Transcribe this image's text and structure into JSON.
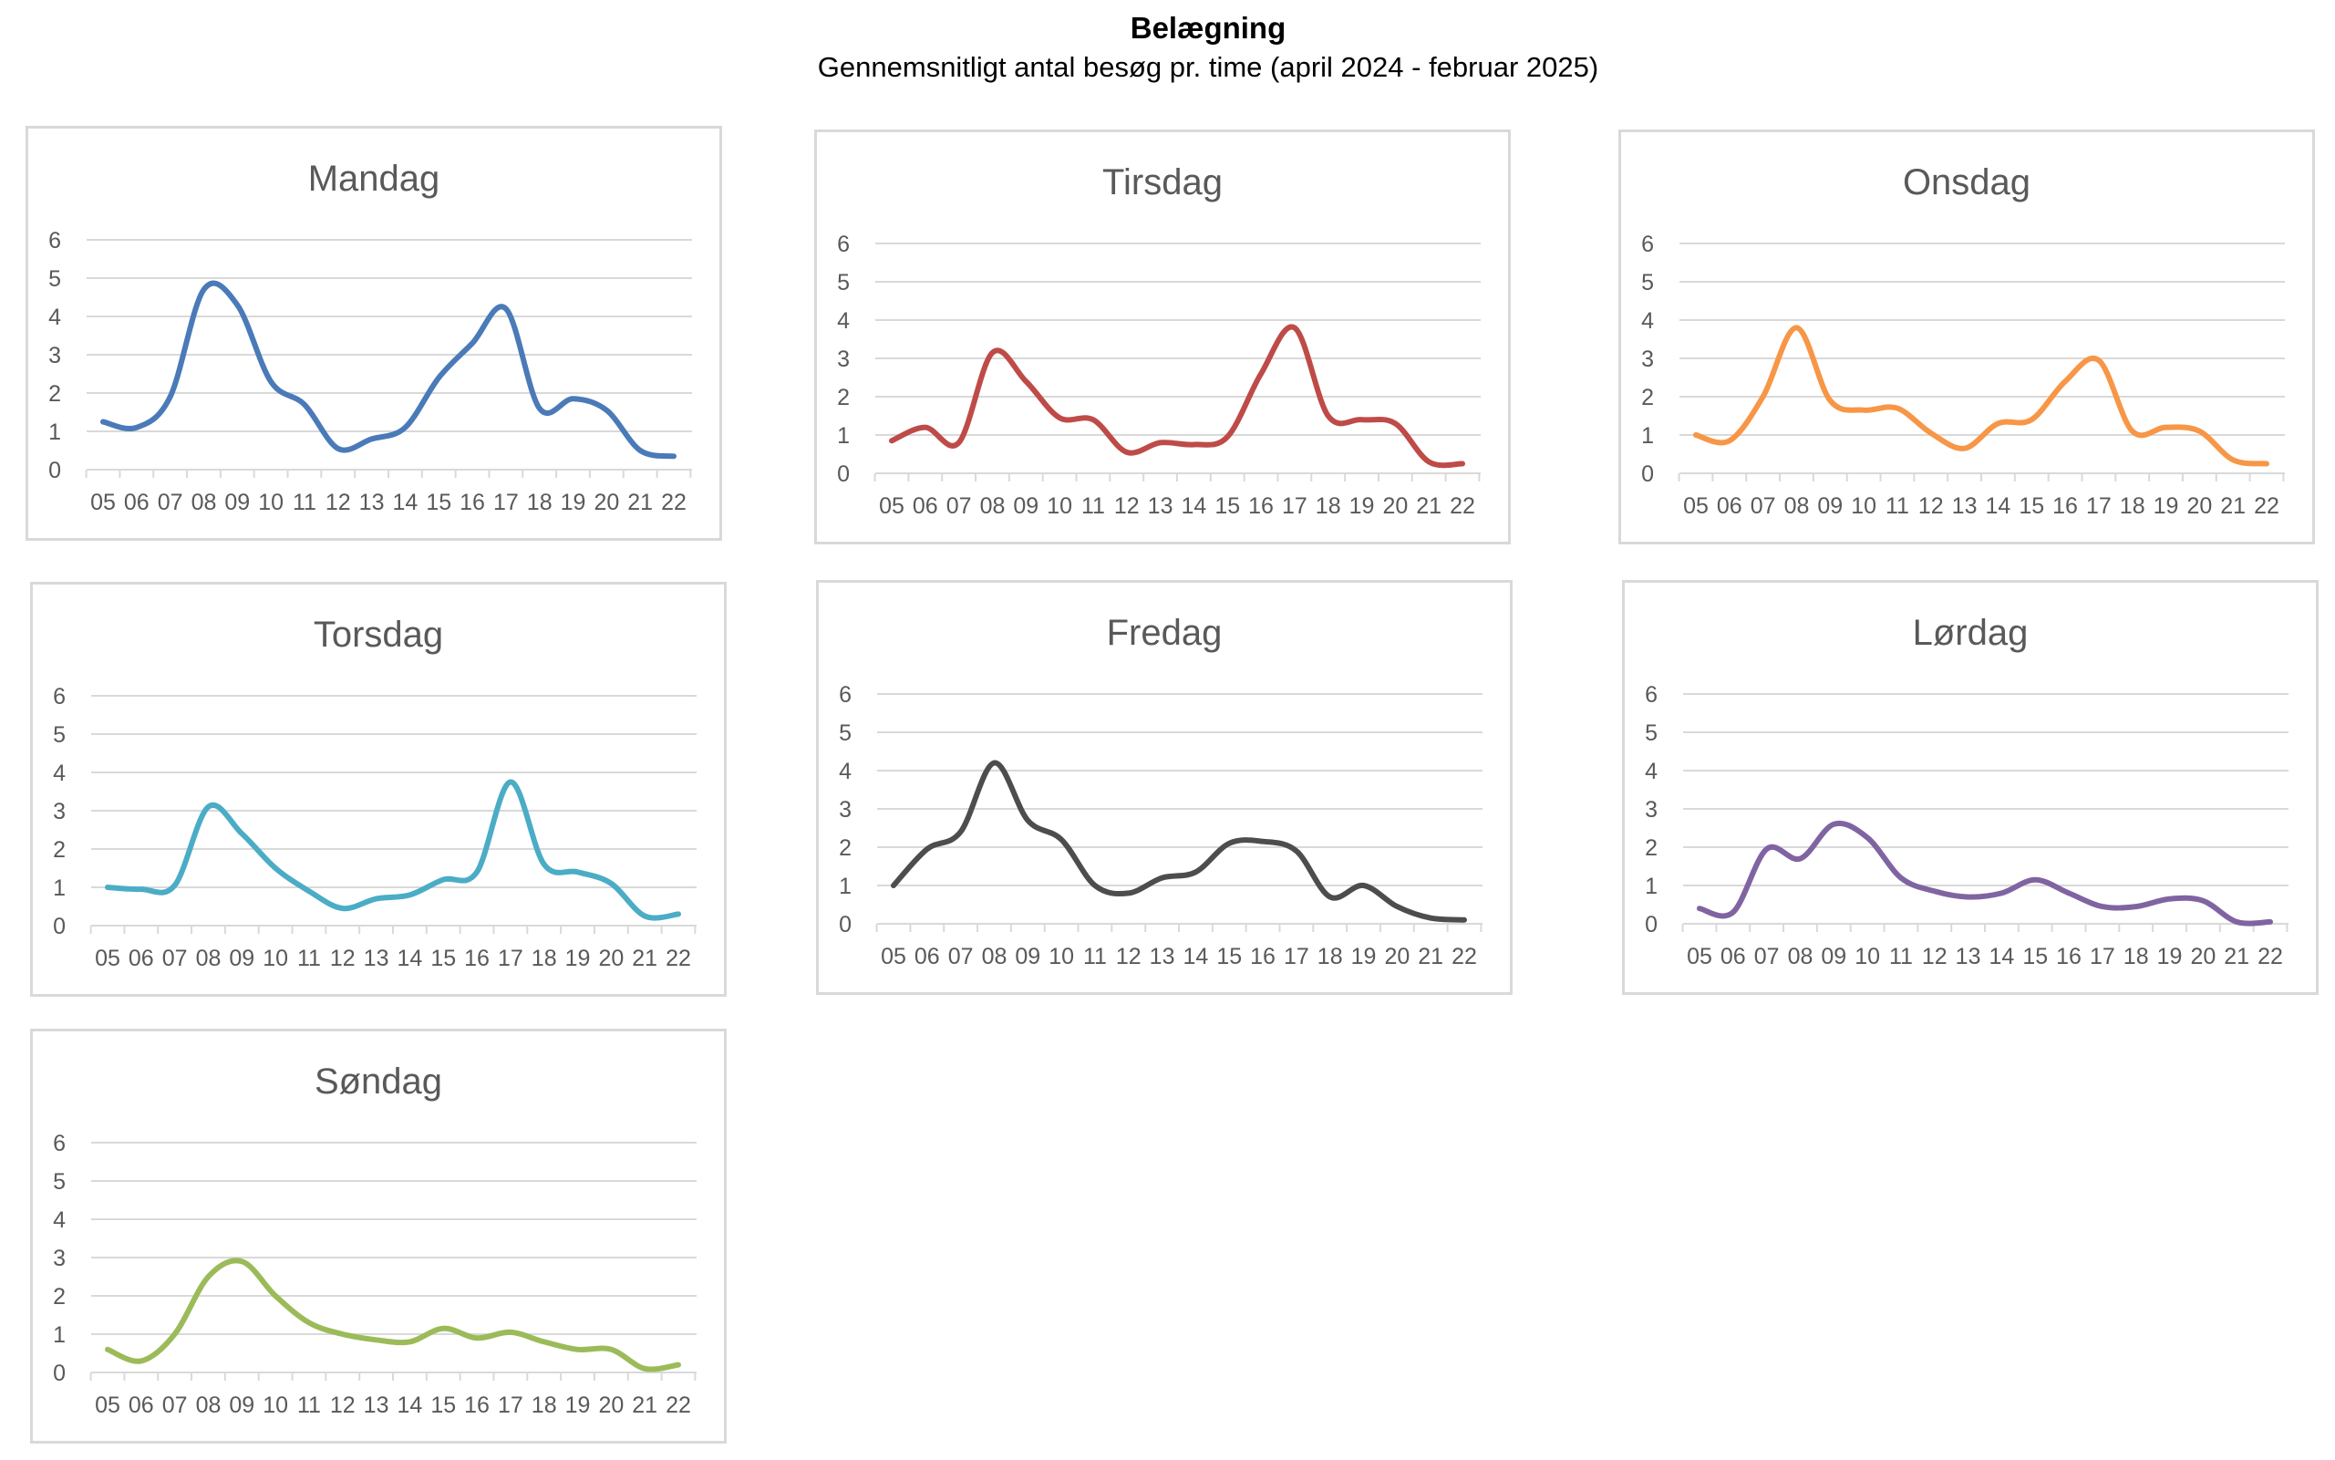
{
  "title": "Belægning",
  "subtitle": "Gennemsnitligt antal besøg pr. time (april 2024 - februar 2025)",
  "chart_data": [
    {
      "type": "line",
      "title": "Mandag",
      "color": "#4a7ab8",
      "categories": [
        "05",
        "06",
        "07",
        "08",
        "09",
        "10",
        "11",
        "12",
        "13",
        "14",
        "15",
        "16",
        "17",
        "18",
        "19",
        "20",
        "21",
        "22"
      ],
      "values": [
        1.25,
        1.1,
        1.9,
        4.7,
        4.3,
        2.3,
        1.7,
        0.55,
        0.8,
        1.1,
        2.4,
        3.3,
        4.2,
        1.6,
        1.85,
        1.55,
        0.5,
        0.35
      ],
      "ylim": [
        0,
        6
      ],
      "yticks": [
        "0",
        "1",
        "2",
        "3",
        "4",
        "5",
        "6"
      ],
      "grid": true
    },
    {
      "type": "line",
      "title": "Tirsdag",
      "color": "#be4b48",
      "categories": [
        "05",
        "06",
        "07",
        "08",
        "09",
        "10",
        "11",
        "12",
        "13",
        "14",
        "15",
        "16",
        "17",
        "18",
        "19",
        "20",
        "21",
        "22"
      ],
      "values": [
        0.85,
        1.2,
        0.8,
        3.15,
        2.4,
        1.45,
        1.4,
        0.55,
        0.8,
        0.75,
        0.95,
        2.6,
        3.8,
        1.5,
        1.4,
        1.3,
        0.3,
        0.25
      ],
      "ylim": [
        0,
        6
      ],
      "yticks": [
        "0",
        "1",
        "2",
        "3",
        "4",
        "5",
        "6"
      ],
      "grid": true
    },
    {
      "type": "line",
      "title": "Onsdag",
      "color": "#f79646",
      "categories": [
        "05",
        "06",
        "07",
        "08",
        "09",
        "10",
        "11",
        "12",
        "13",
        "14",
        "15",
        "16",
        "17",
        "18",
        "19",
        "20",
        "21",
        "22"
      ],
      "values": [
        1.0,
        0.85,
        2.0,
        3.8,
        1.9,
        1.65,
        1.7,
        1.05,
        0.65,
        1.3,
        1.4,
        2.4,
        2.95,
        1.1,
        1.2,
        1.1,
        0.35,
        0.25
      ],
      "ylim": [
        0,
        6
      ],
      "yticks": [
        "0",
        "1",
        "2",
        "3",
        "4",
        "5",
        "6"
      ],
      "grid": true
    },
    {
      "type": "line",
      "title": "Torsdag",
      "color": "#4bacc6",
      "categories": [
        "05",
        "06",
        "07",
        "08",
        "09",
        "10",
        "11",
        "12",
        "13",
        "14",
        "15",
        "16",
        "17",
        "18",
        "19",
        "20",
        "21",
        "22"
      ],
      "values": [
        1.0,
        0.95,
        1.05,
        3.1,
        2.4,
        1.5,
        0.9,
        0.45,
        0.7,
        0.8,
        1.2,
        1.4,
        3.75,
        1.6,
        1.4,
        1.1,
        0.25,
        0.3
      ],
      "ylim": [
        0,
        6
      ],
      "yticks": [
        "0",
        "1",
        "2",
        "3",
        "4",
        "5",
        "6"
      ],
      "grid": true
    },
    {
      "type": "line",
      "title": "Fredag",
      "color": "#4d4d4d",
      "categories": [
        "05",
        "06",
        "07",
        "08",
        "09",
        "10",
        "11",
        "12",
        "13",
        "14",
        "15",
        "16",
        "17",
        "18",
        "19",
        "20",
        "21",
        "22"
      ],
      "values": [
        1.0,
        1.95,
        2.4,
        4.2,
        2.7,
        2.2,
        1.0,
        0.8,
        1.2,
        1.35,
        2.1,
        2.15,
        1.9,
        0.7,
        1.0,
        0.45,
        0.15,
        0.1
      ],
      "ylim": [
        0,
        6
      ],
      "yticks": [
        "0",
        "1",
        "2",
        "3",
        "4",
        "5",
        "6"
      ],
      "grid": true
    },
    {
      "type": "line",
      "title": "Lørdag",
      "color": "#8064a2",
      "categories": [
        "05",
        "06",
        "07",
        "08",
        "09",
        "10",
        "11",
        "12",
        "13",
        "14",
        "15",
        "16",
        "17",
        "18",
        "19",
        "20",
        "21",
        "22"
      ],
      "values": [
        0.4,
        0.3,
        1.95,
        1.7,
        2.6,
        2.25,
        1.2,
        0.85,
        0.7,
        0.8,
        1.15,
        0.8,
        0.45,
        0.45,
        0.65,
        0.6,
        0.05,
        0.05
      ],
      "ylim": [
        0,
        6
      ],
      "yticks": [
        "0",
        "1",
        "2",
        "3",
        "4",
        "5",
        "6"
      ],
      "grid": true
    },
    {
      "type": "line",
      "title": "Søndag",
      "color": "#9bbb59",
      "categories": [
        "05",
        "06",
        "07",
        "08",
        "09",
        "10",
        "11",
        "12",
        "13",
        "14",
        "15",
        "16",
        "17",
        "18",
        "19",
        "20",
        "21",
        "22"
      ],
      "values": [
        0.6,
        0.3,
        1.0,
        2.5,
        2.9,
        2.0,
        1.3,
        1.0,
        0.85,
        0.8,
        1.15,
        0.9,
        1.05,
        0.8,
        0.6,
        0.6,
        0.1,
        0.2
      ],
      "ylim": [
        0,
        6
      ],
      "yticks": [
        "0",
        "1",
        "2",
        "3",
        "4",
        "5",
        "6"
      ],
      "grid": true
    }
  ]
}
